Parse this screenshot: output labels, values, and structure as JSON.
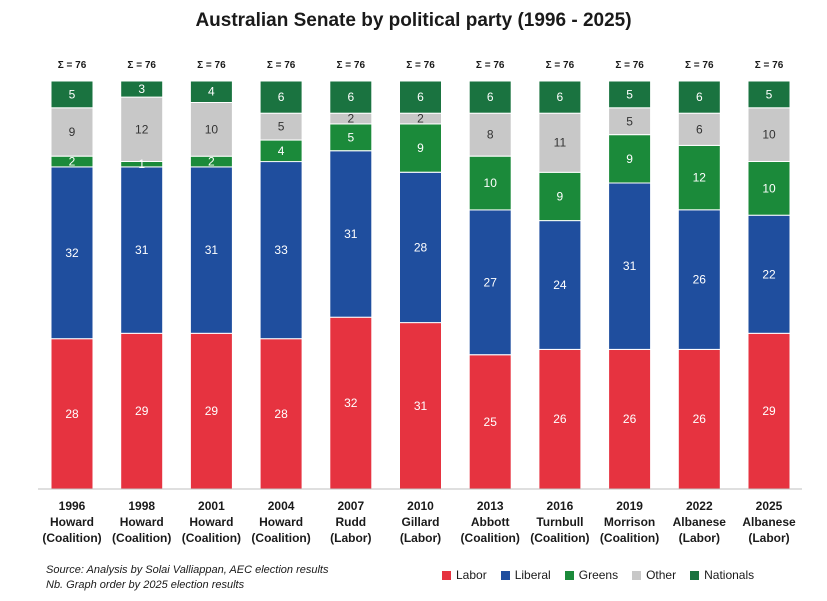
{
  "chart_data": {
    "type": "bar",
    "stacked": true,
    "title": "Australian Senate by political party (1996 - 2025)",
    "categories": [
      [
        "1996",
        "Howard",
        "(Coalition)"
      ],
      [
        "1998",
        "Howard",
        "(Coalition)"
      ],
      [
        "2001",
        "Howard",
        "(Coalition)"
      ],
      [
        "2004",
        "Howard",
        "(Coalition)"
      ],
      [
        "2007",
        "Rudd",
        "(Labor)"
      ],
      [
        "2010",
        "Gillard",
        "(Labor)"
      ],
      [
        "2013",
        "Abbott",
        "(Coalition)"
      ],
      [
        "2016",
        "Turnbull",
        "(Coalition)"
      ],
      [
        "2019",
        "Morrison",
        "(Coalition)"
      ],
      [
        "2022",
        "Albanese",
        "(Labor)"
      ],
      [
        "2025",
        "Albanese",
        "(Labor)"
      ]
    ],
    "totals": [
      "Σ = 76",
      "Σ = 76",
      "Σ = 76",
      "Σ = 76",
      "Σ = 76",
      "Σ = 76",
      "Σ = 76",
      "Σ = 76",
      "Σ = 76",
      "Σ = 76",
      "Σ = 76"
    ],
    "series": [
      {
        "name": "Labor",
        "color": "#e63340",
        "values": [
          28,
          29,
          29,
          28,
          32,
          31,
          25,
          26,
          26,
          26,
          29
        ]
      },
      {
        "name": "Liberal",
        "color": "#1f4e9e",
        "values": [
          32,
          31,
          31,
          33,
          31,
          28,
          27,
          24,
          31,
          26,
          22
        ]
      },
      {
        "name": "Greens",
        "color": "#1b8a3a",
        "values": [
          2,
          1,
          2,
          4,
          5,
          9,
          10,
          9,
          9,
          12,
          10
        ]
      },
      {
        "name": "Other",
        "color": "#c8c8c8",
        "values": [
          9,
          12,
          10,
          5,
          2,
          2,
          8,
          11,
          5,
          6,
          10
        ]
      },
      {
        "name": "Nationals",
        "color": "#1a7340",
        "values": [
          5,
          3,
          4,
          6,
          6,
          6,
          6,
          6,
          5,
          6,
          5
        ]
      }
    ],
    "ylim": [
      0,
      76
    ],
    "grid": false,
    "legend_position": "bottom-right"
  },
  "notes": {
    "source": "Source: Analysis by Solai Valliappan, AEC election results",
    "order": "Nb. Graph order by 2025 election results"
  }
}
